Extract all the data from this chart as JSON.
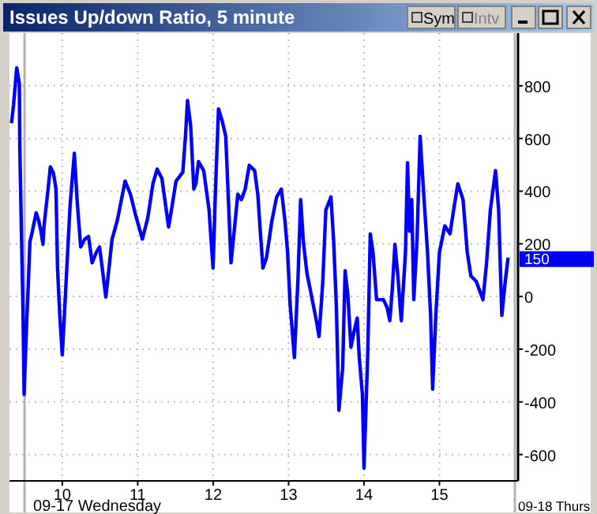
{
  "chart_data": {
    "type": "line",
    "title": "Issues Up/down Ratio, 5 minute",
    "annotations": [
      "Sym",
      "Intv",
      "150"
    ],
    "x": [
      9.327,
      9.354,
      9.396,
      9.431,
      9.437,
      9.458,
      9.479,
      9.494,
      9.529,
      9.55,
      9.571,
      9.604,
      9.654,
      9.687,
      9.717,
      9.744,
      9.758,
      9.812,
      9.842,
      9.883,
      9.917,
      9.937,
      9.967,
      10.0,
      10.035,
      10.071,
      10.104,
      10.16,
      10.196,
      10.244,
      10.3,
      10.348,
      10.396,
      10.452,
      10.494,
      10.521,
      10.577,
      10.612,
      10.66,
      10.729,
      10.833,
      10.904,
      10.973,
      11.062,
      11.133,
      11.202,
      11.258,
      11.321,
      11.369,
      11.41,
      11.458,
      11.508,
      11.598,
      11.633,
      11.66,
      11.702,
      11.744,
      11.771,
      11.806,
      11.875,
      11.946,
      11.979,
      11.999,
      12.029,
      12.071,
      12.119,
      12.167,
      12.202,
      12.237,
      12.279,
      12.327,
      12.375,
      12.425,
      12.479,
      12.55,
      12.592,
      12.625,
      12.66,
      12.708,
      12.779,
      12.842,
      12.904,
      12.952,
      12.987,
      13.021,
      13.077,
      13.125,
      13.16,
      13.196,
      13.244,
      13.3,
      13.369,
      13.404,
      13.452,
      13.494,
      13.562,
      13.598,
      13.633,
      13.667,
      13.717,
      13.75,
      13.785,
      13.827,
      13.869,
      13.91,
      13.937,
      13.979,
      14.0,
      14.05,
      14.083,
      14.119,
      14.167,
      14.258,
      14.306,
      14.342,
      14.375,
      14.41,
      14.452,
      14.494,
      14.55,
      14.577,
      14.604,
      14.633,
      14.66,
      14.702,
      14.744,
      14.792,
      14.842,
      14.883,
      14.91,
      14.952,
      15.0,
      15.071,
      15.14,
      15.188,
      15.244,
      15.313,
      15.369,
      15.417,
      15.487,
      15.577,
      15.625,
      15.675,
      15.744,
      15.785,
      15.827,
      15.869,
      15.91
    ],
    "series": [
      {
        "color": "#0000ff",
        "values": [
          658,
          728,
          868,
          808,
          568,
          248,
          -52,
          -372,
          -92,
          48,
          208,
          248,
          318,
          288,
          248,
          198,
          268,
          408,
          492,
          468,
          408,
          108,
          -72,
          -222,
          -32,
          168,
          348,
          544,
          368,
          188,
          218,
          228,
          128,
          168,
          188,
          128,
          -2,
          88,
          218,
          288,
          438,
          388,
          308,
          218,
          298,
          428,
          484,
          448,
          348,
          264,
          348,
          438,
          472,
          608,
          744,
          648,
          408,
          428,
          512,
          478,
          328,
          188,
          108,
          388,
          712,
          668,
          608,
          368,
          128,
          248,
          388,
          368,
          408,
          498,
          478,
          388,
          248,
          108,
          148,
          288,
          378,
          408,
          288,
          168,
          -32,
          -232,
          68,
          368,
          208,
          88,
          8,
          -92,
          -152,
          48,
          328,
          378,
          208,
          -32,
          -432,
          -272,
          98,
          8,
          -192,
          -132,
          -82,
          -232,
          -372,
          -652,
          -212,
          238,
          168,
          -12,
          -12,
          -42,
          -92,
          28,
          198,
          68,
          -92,
          168,
          508,
          248,
          368,
          -12,
          208,
          608,
          388,
          168,
          -72,
          -352,
          -72,
          168,
          268,
          238,
          328,
          428,
          368,
          168,
          78,
          58,
          -12,
          128,
          328,
          478,
          328,
          -72,
          48,
          148
        ]
      }
    ],
    "xlim": [
      9.3,
      16.0
    ],
    "xticks": [
      10,
      11,
      12,
      13,
      14,
      15
    ],
    "ylim": [
      -700,
      1000
    ],
    "yticks": [
      -600,
      -400,
      -200,
      0,
      200,
      400,
      600,
      800
    ],
    "ref_lines": [
      {
        "axis": "x",
        "value": 9.5,
        "label": "09-17 Wednesday",
        "color": "#b4b4b4"
      },
      {
        "axis": "x",
        "value": 16.0,
        "label": "09-18 Thurs",
        "color": "#b4b4b4"
      }
    ],
    "grid": true,
    "marker": "none",
    "line_style": "solid"
  }
}
